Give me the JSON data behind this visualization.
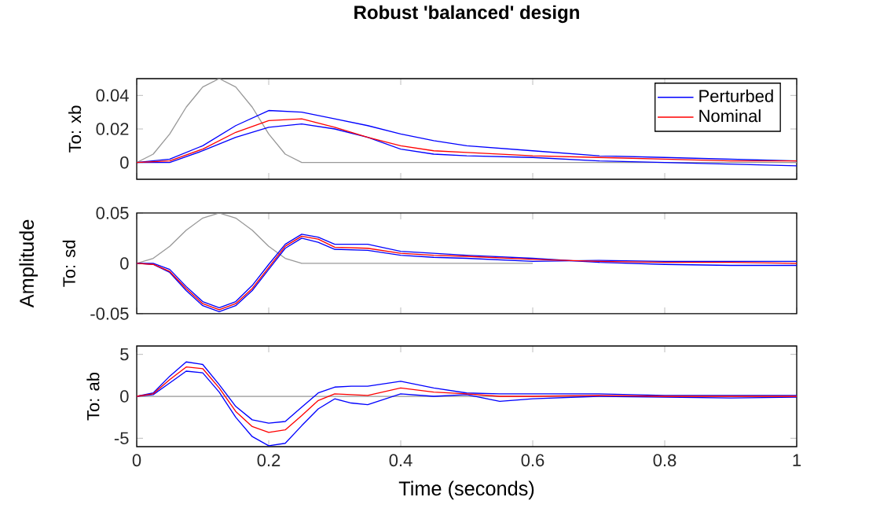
{
  "chart_data": [
    {
      "type": "line",
      "title": "Robust 'balanced' design",
      "ylabel": "To: xb",
      "x": [
        0,
        0.05,
        0.1,
        0.15,
        0.2,
        0.25,
        0.3,
        0.35,
        0.4,
        0.45,
        0.5,
        0.6,
        0.7,
        0.8,
        0.9,
        1
      ],
      "xlim": [
        0,
        1
      ],
      "xticks": [
        0,
        0.2,
        0.4,
        0.6,
        0.8,
        1
      ],
      "ylim": [
        -0.01,
        0.05
      ],
      "yticks": [
        0,
        0.02,
        0.04
      ],
      "tick_labels": "y",
      "legend": "top right",
      "series": [
        {
          "color": "#999999",
          "x": [
            0,
            0.025,
            0.05,
            0.075,
            0.1,
            0.125,
            0.15,
            0.175,
            0.2,
            0.225,
            0.25,
            1
          ],
          "values": [
            0,
            0.005,
            0.017,
            0.033,
            0.045,
            0.05,
            0.045,
            0.033,
            0.017,
            0.005,
            0,
            0
          ]
        },
        {
          "name": "Perturbed",
          "color": "#0000ff",
          "values": [
            0,
            0.002,
            0.01,
            0.022,
            0.031,
            0.03,
            0.026,
            0.022,
            0.017,
            0.013,
            0.01,
            0.007,
            0.004,
            0.003,
            0.002,
            0.001
          ]
        },
        {
          "color": "#0000ff",
          "values": [
            0,
            0,
            0.007,
            0.015,
            0.021,
            0.023,
            0.02,
            0.015,
            0.008,
            0.005,
            0.004,
            0.003,
            0.001,
            0,
            -0.001,
            -0.002
          ]
        },
        {
          "name": "Nominal",
          "color": "#ff0000",
          "values": [
            0,
            0.001,
            0.008,
            0.018,
            0.025,
            0.026,
            0.021,
            0.015,
            0.01,
            0.007,
            0.006,
            0.004,
            0.003,
            0.002,
            0.001,
            0.001
          ]
        }
      ]
    },
    {
      "type": "line",
      "ylabel": "To: sd",
      "annotations": [
        "Amplitude"
      ],
      "x": [
        0,
        0.025,
        0.05,
        0.075,
        0.1,
        0.125,
        0.15,
        0.175,
        0.2,
        0.225,
        0.25,
        0.275,
        0.3,
        0.35,
        0.4,
        0.45,
        0.5,
        0.6,
        0.7,
        0.8,
        0.9,
        1
      ],
      "xlim": [
        0,
        1
      ],
      "xticks": [
        0,
        0.2,
        0.4,
        0.6,
        0.8,
        1
      ],
      "ylim": [
        -0.05,
        0.05
      ],
      "yticks": [
        -0.05,
        0,
        0.05
      ],
      "tick_labels": "y",
      "series": [
        {
          "color": "#999999",
          "x": [
            0,
            0.025,
            0.05,
            0.075,
            0.1,
            0.125,
            0.15,
            0.175,
            0.2,
            0.225,
            0.25,
            0.6
          ],
          "values": [
            0,
            0.005,
            0.017,
            0.033,
            0.045,
            0.05,
            0.045,
            0.033,
            0.017,
            0.005,
            0,
            0
          ]
        },
        {
          "color": "#0000ff",
          "values": [
            0,
            0,
            -0.006,
            -0.023,
            -0.038,
            -0.044,
            -0.038,
            -0.022,
            -0.001,
            0.019,
            0.029,
            0.026,
            0.019,
            0.019,
            0.012,
            0.01,
            0.008,
            0.005,
            0.001,
            -0.001,
            -0.002,
            -0.002
          ]
        },
        {
          "color": "#0000ff",
          "values": [
            0,
            -0.001,
            -0.009,
            -0.027,
            -0.042,
            -0.048,
            -0.042,
            -0.027,
            -0.006,
            0.015,
            0.025,
            0.021,
            0.014,
            0.013,
            0.008,
            0.006,
            0.005,
            0.002,
            0.003,
            0.002,
            0.002,
            0.002
          ]
        },
        {
          "color": "#ff0000",
          "values": [
            0,
            -0.001,
            -0.008,
            -0.025,
            -0.04,
            -0.046,
            -0.04,
            -0.025,
            -0.004,
            0.017,
            0.027,
            0.024,
            0.016,
            0.015,
            0.01,
            0.008,
            0.007,
            0.004,
            0.002,
            0.001,
            0.001,
            0
          ]
        }
      ]
    },
    {
      "type": "line",
      "ylabel": "To: ab",
      "xlabel": "Time (seconds)",
      "x": [
        0,
        0.025,
        0.05,
        0.075,
        0.1,
        0.125,
        0.15,
        0.175,
        0.2,
        0.225,
        0.25,
        0.275,
        0.3,
        0.325,
        0.35,
        0.4,
        0.45,
        0.5,
        0.55,
        0.6,
        0.7,
        0.8,
        0.9,
        1
      ],
      "xlim": [
        0,
        1
      ],
      "xticks": [
        0,
        0.2,
        0.4,
        0.6,
        0.8,
        1
      ],
      "ylim": [
        -6,
        6
      ],
      "yticks": [
        -5,
        0,
        5
      ],
      "series": [
        {
          "color": "#999999",
          "x": [
            0,
            1
          ],
          "values": [
            0,
            0
          ]
        },
        {
          "color": "#0000ff",
          "values": [
            0,
            0.4,
            2.4,
            4.1,
            3.8,
            1.4,
            -1.2,
            -2.8,
            -3.2,
            -3,
            -1.3,
            0.4,
            1.1,
            1.2,
            1.2,
            1.8,
            1,
            0.4,
            0.3,
            0.3,
            0.3,
            0.1,
            0.1,
            0.1
          ]
        },
        {
          "color": "#0000ff",
          "values": [
            0,
            0.2,
            1.6,
            3,
            2.8,
            0.5,
            -2.5,
            -4.8,
            -5.9,
            -5.6,
            -3.5,
            -1.5,
            -0.3,
            -0.8,
            -1,
            0.3,
            0,
            0.2,
            -0.6,
            -0.3,
            0,
            -0.1,
            -0.2,
            -0.1
          ]
        },
        {
          "color": "#ff0000",
          "values": [
            0,
            0.3,
            2,
            3.5,
            3.3,
            1,
            -1.8,
            -3.6,
            -4.3,
            -4,
            -2.3,
            -0.5,
            0.3,
            0.2,
            0.1,
            1,
            0.5,
            0.3,
            0,
            0,
            0.1,
            0,
            0,
            0
          ]
        }
      ]
    }
  ]
}
